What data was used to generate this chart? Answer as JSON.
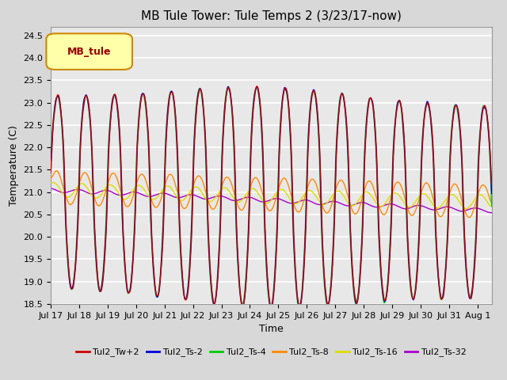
{
  "title": "MB Tule Tower: Tule Temps 2 (3/23/17-now)",
  "xlabel": "Time",
  "ylabel": "Temperature (C)",
  "ylim": [
    18.5,
    24.7
  ],
  "xlim": [
    0,
    15.5
  ],
  "background_color": "#d8d8d8",
  "plot_bg_color": "#e8e8e8",
  "grid_color": "#ffffff",
  "legend_label": "MB_tule",
  "series_colors": {
    "Tul2_Tw+2": "#cc0000",
    "Tul2_Ts-2": "#0000dd",
    "Tul2_Ts-4": "#00cc00",
    "Tul2_Ts-8": "#ff8800",
    "Tul2_Ts-16": "#dddd00",
    "Tul2_Ts-32": "#aa00cc"
  },
  "xtick_labels": [
    "Jul 17",
    "Jul 18",
    "Jul 19",
    "Jul 20",
    "Jul 21",
    "Jul 22",
    "Jul 23",
    "Jul 24",
    "Jul 25",
    "Jul 26",
    "Jul 27",
    "Jul 28",
    "Jul 29",
    "Jul 30",
    "Jul 31",
    "Aug 1"
  ],
  "xtick_positions": [
    0,
    1,
    2,
    3,
    4,
    5,
    6,
    7,
    8,
    9,
    10,
    11,
    12,
    13,
    14,
    15
  ]
}
